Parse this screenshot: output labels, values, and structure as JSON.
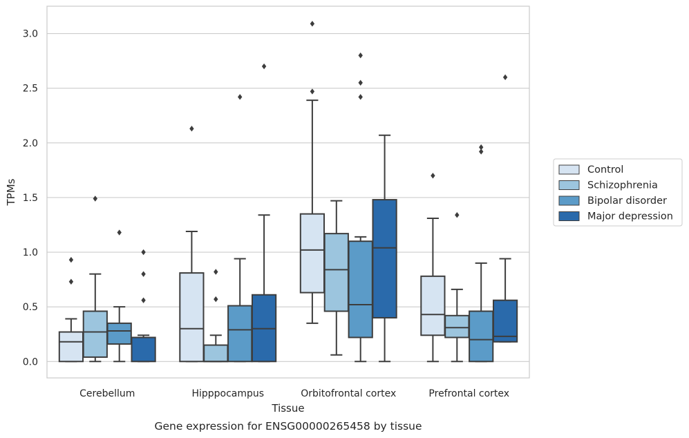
{
  "chart_data": {
    "type": "box",
    "xlabel": "Tissue",
    "ylabel": "TPMs",
    "caption": "Gene expression for ENSG00000265458 by tissue",
    "ylim": [
      -0.15,
      3.25
    ],
    "yticks": [
      0.0,
      0.5,
      1.0,
      1.5,
      2.0,
      2.5,
      3.0
    ],
    "ytick_labels": [
      "0.0",
      "0.5",
      "1.0",
      "1.5",
      "2.0",
      "2.5",
      "3.0"
    ],
    "grid": "horizontal",
    "legend_position": "right",
    "categories": [
      "Cerebellum",
      "Hipppocampus",
      "Orbitofrontal cortex",
      "Prefrontal cortex"
    ],
    "series": [
      {
        "name": "Control",
        "color": "#d6e4f2",
        "boxes": [
          {
            "whislo": 0.0,
            "q1": 0.0,
            "med": 0.18,
            "q3": 0.27,
            "whishi": 0.39,
            "fliers": [
              0.73,
              0.93
            ]
          },
          {
            "whislo": 0.0,
            "q1": 0.0,
            "med": 0.3,
            "q3": 0.81,
            "whishi": 1.19,
            "fliers": [
              2.13
            ]
          },
          {
            "whislo": 0.35,
            "q1": 0.63,
            "med": 1.02,
            "q3": 1.35,
            "whishi": 2.39,
            "fliers": [
              2.47,
              3.09
            ]
          },
          {
            "whislo": 0.0,
            "q1": 0.24,
            "med": 0.43,
            "q3": 0.78,
            "whishi": 1.31,
            "fliers": [
              1.7
            ]
          }
        ]
      },
      {
        "name": "Schizophrenia",
        "color": "#9cc5de",
        "boxes": [
          {
            "whislo": 0.0,
            "q1": 0.04,
            "med": 0.27,
            "q3": 0.46,
            "whishi": 0.8,
            "fliers": [
              1.49
            ]
          },
          {
            "whislo": 0.0,
            "q1": 0.0,
            "med": 0.0,
            "q3": 0.15,
            "whishi": 0.24,
            "fliers": [
              0.57,
              0.82
            ]
          },
          {
            "whislo": 0.06,
            "q1": 0.46,
            "med": 0.84,
            "q3": 1.17,
            "whishi": 1.47,
            "fliers": []
          },
          {
            "whislo": 0.0,
            "q1": 0.22,
            "med": 0.31,
            "q3": 0.42,
            "whishi": 0.66,
            "fliers": [
              1.34
            ]
          }
        ]
      },
      {
        "name": "Bipolar disorder",
        "color": "#5b9bc8",
        "boxes": [
          {
            "whislo": 0.0,
            "q1": 0.16,
            "med": 0.28,
            "q3": 0.35,
            "whishi": 0.5,
            "fliers": [
              1.18
            ]
          },
          {
            "whislo": 0.0,
            "q1": 0.0,
            "med": 0.29,
            "q3": 0.51,
            "whishi": 0.94,
            "fliers": [
              2.42
            ]
          },
          {
            "whislo": 0.0,
            "q1": 0.22,
            "med": 0.52,
            "q3": 1.1,
            "whishi": 1.14,
            "fliers": [
              2.42,
              2.55,
              2.8
            ]
          },
          {
            "whislo": 0.0,
            "q1": 0.0,
            "med": 0.2,
            "q3": 0.46,
            "whishi": 0.9,
            "fliers": [
              1.92,
              1.96
            ]
          }
        ]
      },
      {
        "name": "Major depression",
        "color": "#2a6aab",
        "boxes": [
          {
            "whislo": 0.0,
            "q1": 0.0,
            "med": 0.22,
            "q3": 0.22,
            "whishi": 0.24,
            "fliers": [
              0.56,
              0.8,
              1.0
            ]
          },
          {
            "whislo": 0.0,
            "q1": 0.0,
            "med": 0.3,
            "q3": 0.61,
            "whishi": 1.34,
            "fliers": [
              2.7
            ]
          },
          {
            "whislo": 0.0,
            "q1": 0.4,
            "med": 1.04,
            "q3": 1.48,
            "whishi": 2.07,
            "fliers": []
          },
          {
            "whislo": 0.18,
            "q1": 0.18,
            "med": 0.23,
            "q3": 0.56,
            "whishi": 0.94,
            "fliers": [
              2.6
            ]
          }
        ]
      }
    ]
  }
}
